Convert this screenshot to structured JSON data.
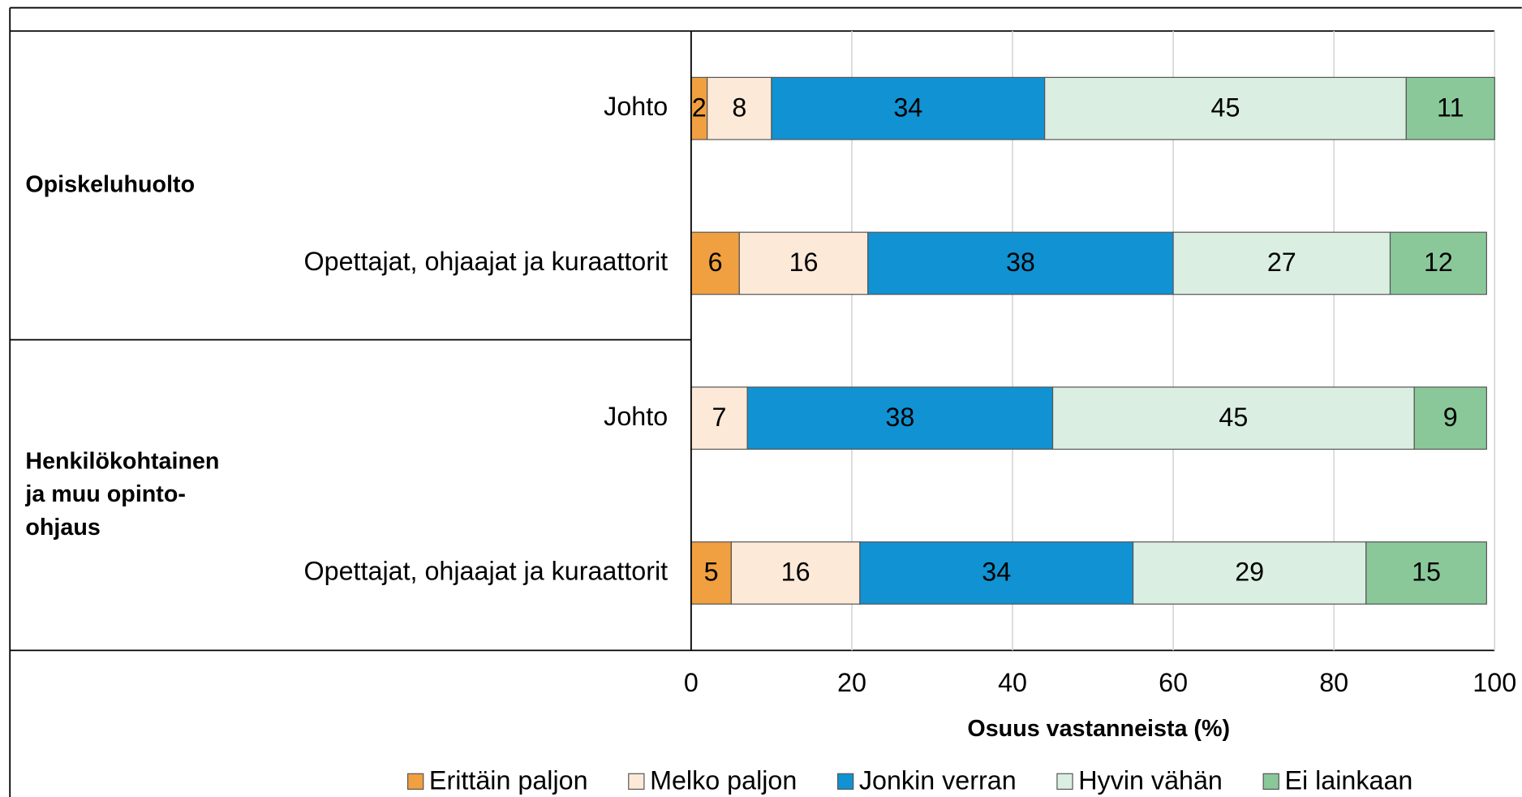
{
  "chart_data": {
    "type": "stacked_barh",
    "groups": [
      {
        "label": [
          "Opiskeluhuolto"
        ],
        "rows": [
          0,
          1
        ]
      },
      {
        "label": [
          "Henkilökohtainen",
          "ja muu opinto-",
          "ohjaus"
        ],
        "rows": [
          2,
          3
        ]
      }
    ],
    "categories": [
      "Johto",
      "Opettajat, ohjaajat ja kuraattorit",
      "Johto",
      "Opettajat, ohjaajat ja kuraattorit"
    ],
    "series": [
      {
        "name": "Erittäin paljon",
        "color": "#f0a040",
        "values": [
          2,
          6,
          null,
          5
        ]
      },
      {
        "name": "Melko paljon",
        "color": "#fde9d8",
        "values": [
          8,
          16,
          7,
          16
        ]
      },
      {
        "name": "Jonkin verran",
        "color": "#1192d3",
        "values": [
          34,
          38,
          38,
          34
        ]
      },
      {
        "name": "Hyvin vähän",
        "color": "#dbeee2",
        "values": [
          45,
          27,
          45,
          29
        ]
      },
      {
        "name": "Ei lainkaan",
        "color": "#8ac89a",
        "values": [
          11,
          12,
          9,
          15
        ]
      }
    ],
    "xlabel": "Osuus vastanneista (%)",
    "xlim": [
      0,
      100
    ],
    "xticks": [
      0,
      20,
      40,
      60,
      80,
      100
    ],
    "grid": true,
    "legend": "bottom"
  }
}
